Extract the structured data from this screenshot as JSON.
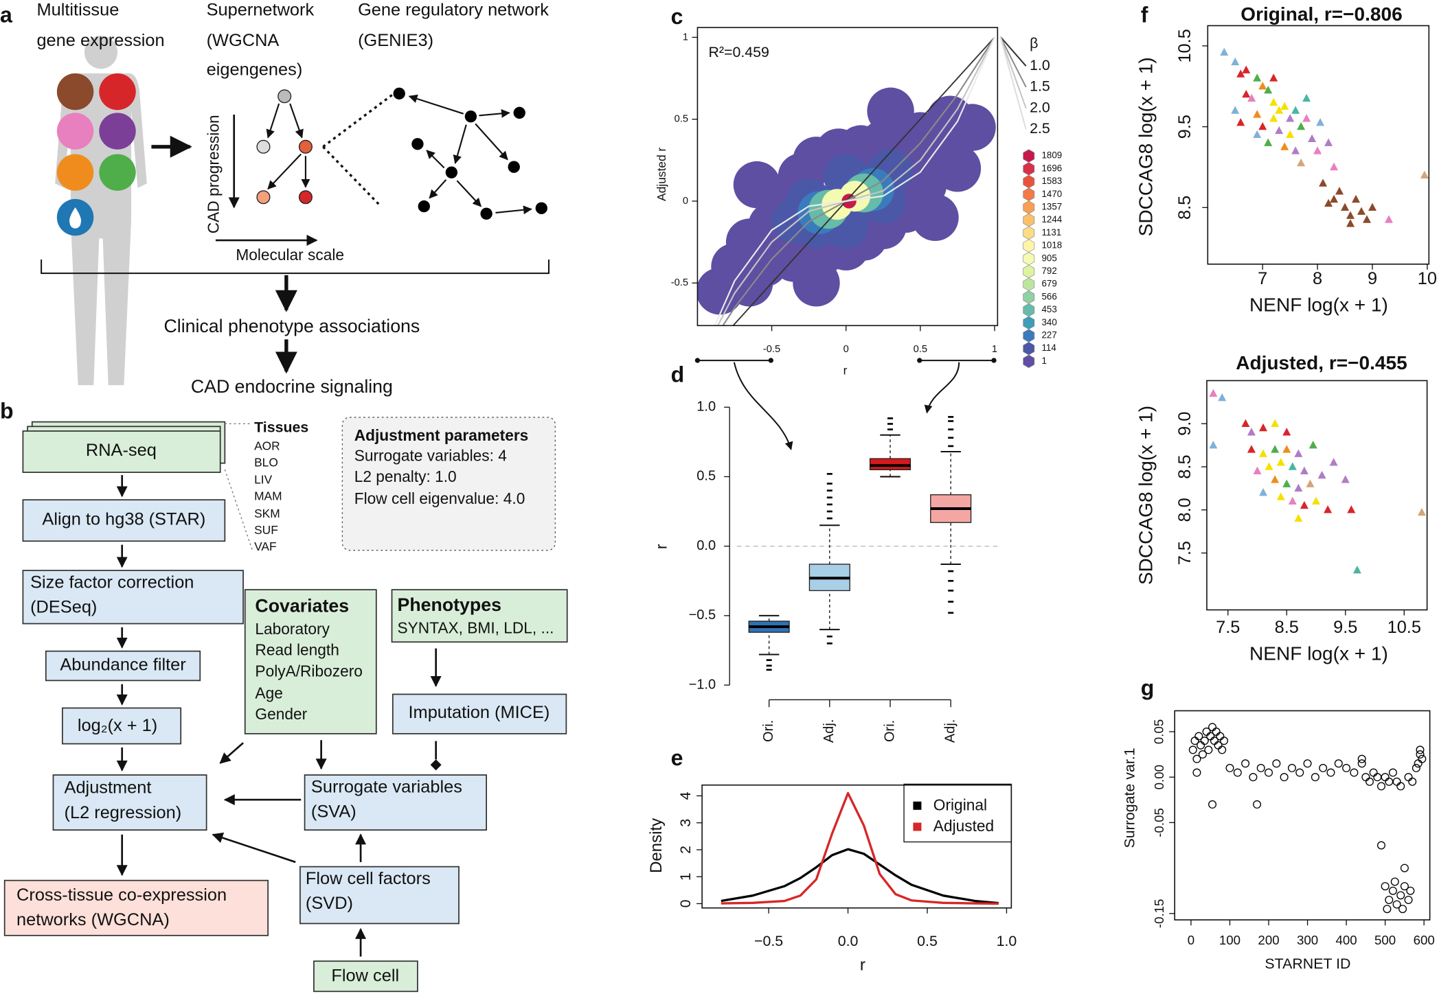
{
  "panel_a": {
    "label": "a",
    "expression_title": [
      "Multitissue",
      "gene expression"
    ],
    "supernetwork_title": [
      "Supernetwork",
      "(WGCNA",
      "eigengenes)"
    ],
    "grn_title": [
      "Gene regulatory network",
      "(GENIE3)"
    ],
    "progression_label": "CAD progression",
    "scale_label": "Molecular scale",
    "associations": "Clinical phenotype associations",
    "signaling": "CAD endocrine signaling"
  },
  "panel_b": {
    "label": "b",
    "rnaseq": "RNA-seq",
    "tissues_title": "Tissues",
    "tissues": [
      "AOR",
      "BLO",
      "LIV",
      "MAM",
      "SKM",
      "SUF",
      "VAF"
    ],
    "params_title": "Adjustment parameters",
    "params": [
      "Surrogate variables: 4",
      "L2 penalty: 1.0",
      "Flow cell eigenvalue: 4.0"
    ],
    "align": "Align to hg38 (STAR)",
    "size_factor": [
      "Size factor correction",
      "(DESeq)"
    ],
    "abundance": "Abundance filter",
    "log": "log₂(x + 1)",
    "adjustment": [
      "Adjustment",
      "(L2 regression)"
    ],
    "networks": [
      "Cross-tissue co-expression",
      "networks (WGCNA)"
    ],
    "covariates_title": "Covariates",
    "covariates": [
      "Laboratory",
      "Read length",
      "PolyA/Ribozero",
      "Age",
      "Gender"
    ],
    "phenotypes_title": "Phenotypes",
    "phenotypes": "SYNTAX, BMI, LDL, ...",
    "imputation": "Imputation (MICE)",
    "sva": [
      "Surrogate variables",
      "(SVA)"
    ],
    "svd": [
      "Flow cell factors",
      "(SVD)"
    ],
    "flowcell": "Flow cell"
  },
  "chart_data": [
    {
      "type": "hexbin",
      "label": "c",
      "annotation": "R²=0.459",
      "xlabel": "r",
      "ylabel": "Adjusted r",
      "xlim": [
        -1,
        1.02
      ],
      "ylim": [
        -0.76,
        1.06
      ],
      "xticks": [
        -0.5,
        0,
        0.5,
        1
      ],
      "yticks": [
        -0.5,
        0,
        0.5,
        1
      ],
      "bins": {
        "x": [
          -0.85,
          -0.75,
          -0.65,
          -0.65,
          -0.55,
          -0.5,
          -0.45,
          -0.4,
          -0.35,
          -0.3,
          -0.25,
          -0.2,
          -0.15,
          -0.05,
          0.0,
          0.1,
          0.12,
          0.25,
          0.25,
          0.38,
          0.4,
          0.5,
          0.52,
          0.62,
          0.7,
          0.75,
          0.85,
          -0.6,
          0.6,
          0.3,
          -0.2,
          -0.35,
          -0.25,
          -0.2,
          0.2,
          0.3,
          0.25,
          0.0,
          0.0,
          -0.18,
          0.18,
          -0.12,
          0.12,
          -0.06,
          0.06,
          0.02
        ],
        "y": [
          -0.55,
          -0.4,
          -0.5,
          -0.25,
          -0.38,
          -0.15,
          -0.3,
          0.0,
          -0.35,
          0.15,
          -0.28,
          0.25,
          -0.3,
          0.3,
          -0.28,
          0.32,
          -0.22,
          0.35,
          -0.15,
          0.35,
          -0.05,
          0.4,
          0.1,
          0.3,
          0.5,
          0.2,
          0.45,
          0.1,
          -0.1,
          0.55,
          -0.5,
          -0.12,
          0.0,
          -0.15,
          0.1,
          0.18,
          0.0,
          0.15,
          -0.15,
          -0.07,
          0.07,
          -0.05,
          0.05,
          -0.02,
          0.03,
          0.0
        ],
        "counts": [
          1,
          1,
          1,
          1,
          1,
          1,
          1,
          1,
          1,
          1,
          1,
          1,
          1,
          1,
          1,
          1,
          1,
          1,
          1,
          1,
          1,
          1,
          1,
          1,
          1,
          1,
          1,
          1,
          1,
          1,
          1,
          114,
          114,
          114,
          114,
          114,
          114,
          114,
          114,
          227,
          227,
          453,
          453,
          905,
          905,
          1809
        ]
      },
      "colorbar": {
        "values": [
          1809,
          1696,
          1583,
          1470,
          1357,
          1244,
          1131,
          1018,
          905,
          792,
          679,
          566,
          453,
          340,
          227,
          114,
          1
        ],
        "colors": [
          "#c51b4a",
          "#d7304a",
          "#e8543b",
          "#f27a47",
          "#f7a054",
          "#fbc06a",
          "#fddc84",
          "#fff5a8",
          "#f4fab0",
          "#def3a0",
          "#bde59f",
          "#90d0a3",
          "#66bca8",
          "#3f9db8",
          "#3a7bbd",
          "#4b58a8",
          "#5e4fa2"
        ]
      },
      "curves_title": "β",
      "curves": [
        {
          "name": "1.0",
          "color": "#333333",
          "x": [
            -1,
            1
          ],
          "y": [
            -1,
            1
          ]
        },
        {
          "name": "1.5",
          "color": "#8a8a8a",
          "x": [
            -1,
            -0.75,
            -0.5,
            -0.25,
            0,
            0.25,
            0.5,
            0.75,
            1
          ],
          "y": [
            -1,
            -0.65,
            -0.354,
            -0.125,
            0,
            0.125,
            0.354,
            0.65,
            1
          ]
        },
        {
          "name": "2.0",
          "color": "#c4c4c4",
          "x": [
            -1,
            -0.75,
            -0.5,
            -0.25,
            0,
            0.25,
            0.5,
            0.75,
            1
          ],
          "y": [
            -1,
            -0.5625,
            -0.25,
            -0.0625,
            0,
            0.0625,
            0.25,
            0.5625,
            1
          ]
        },
        {
          "name": "2.5",
          "color": "#ebebeb",
          "x": [
            -1,
            -0.75,
            -0.5,
            -0.25,
            0,
            0.25,
            0.5,
            0.75,
            1
          ],
          "y": [
            -1,
            -0.487,
            -0.177,
            -0.031,
            0,
            0.031,
            0.177,
            0.487,
            1
          ]
        }
      ]
    },
    {
      "type": "box",
      "label": "d",
      "ylabel": "r",
      "categories": [
        "Ori.",
        "Adj.",
        "Ori.",
        "Adj."
      ],
      "ylim": [
        -1,
        1
      ],
      "yticks": [
        {
          "value": 1,
          "label": "1.0"
        },
        {
          "value": 0.5,
          "label": "0.5"
        },
        {
          "value": 0,
          "label": "0.0"
        },
        {
          "value": -0.5,
          "label": "−0.5"
        },
        {
          "value": -1,
          "label": "−1.0"
        }
      ],
      "hline": 0,
      "boxes": [
        {
          "color": "#2f72b3",
          "whisker_low": -0.78,
          "q1": -0.62,
          "median": -0.58,
          "q3": -0.54,
          "whisker_high": -0.5,
          "outliers": [
            -0.82,
            -0.86,
            -0.89
          ]
        },
        {
          "color": "#a8cfe6",
          "whisker_low": -0.6,
          "q1": -0.32,
          "median": -0.23,
          "q3": -0.13,
          "whisker_high": 0.15,
          "outliers": [
            0.2,
            0.25,
            0.3,
            0.35,
            0.4,
            0.45,
            0.52,
            -0.65,
            -0.7
          ]
        },
        {
          "color": "#d7191c",
          "whisker_low": 0.5,
          "q1": 0.55,
          "median": 0.58,
          "q3": 0.63,
          "whisker_high": 0.8,
          "outliers": [
            0.84,
            0.88,
            0.92
          ]
        },
        {
          "color": "#f4a6a3",
          "whisker_low": -0.13,
          "q1": 0.17,
          "median": 0.27,
          "q3": 0.37,
          "whisker_high": 0.68,
          "outliers": [
            0.72,
            0.78,
            0.84,
            0.9,
            0.93,
            -0.18,
            -0.25,
            -0.32,
            -0.4,
            -0.48
          ]
        }
      ]
    },
    {
      "type": "line",
      "label": "e",
      "xlabel": "r",
      "ylabel": "Density",
      "legend": "top-right",
      "x": [
        -0.8,
        -0.6,
        -0.4,
        -0.3,
        -0.2,
        -0.1,
        0,
        0.1,
        0.2,
        0.3,
        0.4,
        0.6,
        0.8,
        0.95
      ],
      "xlim": [
        -0.92,
        1.03
      ],
      "ylim": [
        -0.16,
        4.4
      ],
      "xticks": [
        {
          "value": -0.5,
          "label": "−0.5"
        },
        {
          "value": 0,
          "label": "0.0"
        },
        {
          "value": 0.5,
          "label": "0.5"
        },
        {
          "value": 1,
          "label": "1.0"
        }
      ],
      "yticks": [
        0,
        1,
        2,
        3,
        4
      ],
      "series": [
        {
          "name": "Original",
          "color": "#000000",
          "values": [
            0.1,
            0.3,
            0.65,
            0.95,
            1.35,
            1.8,
            2.02,
            1.85,
            1.45,
            1.05,
            0.7,
            0.3,
            0.1,
            0.02
          ]
        },
        {
          "name": "Adjusted",
          "color": "#d62728",
          "values": [
            0.01,
            0.03,
            0.1,
            0.3,
            0.9,
            2.6,
            4.1,
            2.9,
            1.1,
            0.35,
            0.12,
            0.03,
            0.01,
            0.0
          ]
        }
      ]
    },
    {
      "type": "scatter",
      "marker": "triangle",
      "label": "f",
      "title": "Original, r=−0.806",
      "xlabel": "NENF log(x + 1)",
      "ylabel": "SDCCAG8 log(x + 1)",
      "xlim": [
        6.0,
        10.03
      ],
      "ylim": [
        7.8,
        10.75
      ],
      "xticks": [
        7,
        8,
        9,
        10
      ],
      "yticks": [
        8.5,
        9.5,
        10.5
      ],
      "x": [
        6.3,
        6.5,
        6.6,
        6.7,
        6.9,
        6.7,
        6.8,
        7.0,
        7.1,
        7.2,
        7.3,
        7.4,
        7.2,
        7.5,
        7.6,
        7.0,
        6.9,
        6.6,
        6.5,
        7.3,
        7.5,
        7.7,
        7.8,
        7.9,
        7.4,
        7.6,
        8.0,
        8.2,
        7.1,
        6.9,
        7.7,
        8.3,
        8.1,
        8.3,
        8.5,
        8.6,
        8.8,
        8.7,
        8.4,
        8.9,
        9.0,
        8.6,
        8.2,
        9.3,
        9.95,
        7.2,
        7.8,
        8.05
      ],
      "y": [
        10.42,
        10.3,
        10.15,
        10.2,
        10.1,
        9.9,
        9.85,
        10.0,
        9.95,
        9.8,
        9.7,
        9.75,
        9.6,
        9.6,
        9.7,
        9.5,
        9.65,
        9.55,
        9.7,
        9.45,
        9.4,
        9.5,
        9.6,
        9.35,
        9.25,
        9.2,
        9.2,
        9.3,
        9.3,
        9.4,
        9.05,
        9.0,
        8.8,
        8.6,
        8.5,
        8.4,
        8.45,
        8.6,
        8.7,
        8.35,
        8.5,
        8.3,
        8.55,
        8.35,
        8.9,
        10.1,
        9.85,
        9.55
      ],
      "colors": [
        "#7fb1d9",
        "#7fb1d9",
        "#d7262a",
        "#d7262a",
        "#4fae4a",
        "#d7262a",
        "#e87fbf",
        "#f08c1e",
        "#4fae4a",
        "#f5e000",
        "#f5e000",
        "#f5e000",
        "#f5e000",
        "#b07cc6",
        "#49b5a5",
        "#d7262a",
        "#f08c1e",
        "#d7262a",
        "#7fb1d9",
        "#b07cc6",
        "#f5e000",
        "#4fae4a",
        "#e87fbf",
        "#b07cc6",
        "#f08c1e",
        "#b07cc6",
        "#e87fbf",
        "#b07cc6",
        "#4fae4a",
        "#7fb1d9",
        "#d2a679",
        "#e87fbf",
        "#8b4a2b",
        "#8b4a2b",
        "#8b4a2b",
        "#8b4a2b",
        "#8b4a2b",
        "#8b4a2b",
        "#8b4a2b",
        "#8b4a2b",
        "#8b4a2b",
        "#8b4a2b",
        "#8b4a2b",
        "#e87fbf",
        "#d2a679",
        "#d7262a",
        "#49b5a5",
        "#7fb1d9"
      ]
    },
    {
      "type": "scatter",
      "marker": "triangle",
      "title": "Adjusted, r=−0.455",
      "xlabel": "NENF log(x + 1)",
      "ylabel": "SDCCAG8 log(x + 1)",
      "xlim": [
        7.14,
        10.89
      ],
      "ylim": [
        6.84,
        9.5
      ],
      "xticks": [
        7.5,
        8.5,
        9.5,
        10.5
      ],
      "yticks": [
        7.5,
        {
          "value": 8,
          "label": "8.0"
        },
        8.5,
        {
          "value": 9,
          "label": "9.0"
        }
      ],
      "x": [
        7.25,
        7.4,
        7.25,
        7.8,
        7.9,
        8.1,
        8.3,
        8.5,
        7.9,
        8.1,
        8.3,
        8.5,
        8.7,
        8.2,
        8.4,
        8.6,
        8.8,
        8.0,
        8.3,
        8.5,
        8.7,
        8.9,
        9.1,
        8.4,
        8.6,
        8.8,
        9.0,
        9.2,
        9.5,
        9.6,
        8.1,
        8.7,
        9.7,
        10.8,
        9.3,
        8.95
      ],
      "y": [
        9.35,
        9.3,
        8.75,
        9.0,
        8.9,
        8.95,
        9.0,
        8.9,
        8.7,
        8.65,
        8.7,
        8.7,
        8.65,
        8.5,
        8.55,
        8.5,
        8.45,
        8.45,
        8.35,
        8.3,
        8.25,
        8.3,
        8.4,
        8.15,
        8.1,
        8.05,
        8.1,
        8.0,
        8.35,
        8.0,
        8.2,
        7.9,
        7.3,
        7.97,
        8.55,
        8.75
      ],
      "colors": [
        "#e87fbf",
        "#7fb1d9",
        "#7fb1d9",
        "#d7262a",
        "#b07cc6",
        "#d7262a",
        "#f5e000",
        "#d7262a",
        "#d7262a",
        "#f5e000",
        "#4fae4a",
        "#f08c1e",
        "#b07cc6",
        "#f5e000",
        "#f5e000",
        "#49b5a5",
        "#b07cc6",
        "#e87fbf",
        "#f08c1e",
        "#4fae4a",
        "#b07cc6",
        "#d2a679",
        "#b07cc6",
        "#f5e000",
        "#e87fbf",
        "#d7262a",
        "#f5e000",
        "#d7262a",
        "#b07cc6",
        "#d7262a",
        "#7fb1d9",
        "#f5e000",
        "#49b5a5",
        "#d2a679",
        "#b07cc6",
        "#4fae4a"
      ]
    },
    {
      "type": "scatter",
      "marker": "circle",
      "label": "g",
      "color": "#000000",
      "xlabel": "STARNET ID",
      "ylabel": "Surrogate var.1",
      "xlim": [
        -42,
        615
      ],
      "ylim": [
        -0.157,
        0.073
      ],
      "xticks": [
        0,
        100,
        200,
        300,
        400,
        500,
        600
      ],
      "yticks": [
        0.05,
        {
          "value": 0,
          "label": "0.00"
        },
        -0.05,
        -0.15
      ],
      "x": [
        5,
        10,
        15,
        20,
        25,
        30,
        35,
        40,
        45,
        50,
        55,
        60,
        65,
        70,
        75,
        80,
        85,
        15,
        55,
        100,
        120,
        140,
        160,
        180,
        200,
        220,
        240,
        260,
        280,
        300,
        320,
        340,
        360,
        380,
        400,
        420,
        440,
        170,
        450,
        460,
        470,
        480,
        490,
        500,
        510,
        520,
        530,
        540,
        560,
        570,
        440,
        490,
        500,
        510,
        520,
        530,
        540,
        550,
        560,
        505,
        525,
        545,
        565,
        550,
        585,
        590,
        595,
        580,
        590
      ],
      "y": [
        0.03,
        0.04,
        0.02,
        0.045,
        0.035,
        0.025,
        0.04,
        0.05,
        0.03,
        0.045,
        0.055,
        0.04,
        0.05,
        0.035,
        0.045,
        0.03,
        0.04,
        0.005,
        -0.03,
        0.01,
        0.005,
        0.015,
        0.0,
        0.01,
        0.005,
        0.015,
        0.0,
        0.01,
        0.005,
        0.015,
        0.0,
        0.01,
        0.005,
        0.015,
        0.01,
        0.005,
        0.015,
        -0.03,
        0.0,
        -0.005,
        0.005,
        0.0,
        -0.01,
        0.0,
        -0.005,
        0.005,
        -0.005,
        -0.01,
        0.0,
        -0.005,
        0.02,
        -0.075,
        -0.12,
        -0.135,
        -0.125,
        -0.14,
        -0.13,
        -0.12,
        -0.135,
        -0.145,
        -0.115,
        -0.145,
        -0.125,
        -0.1,
        0.015,
        0.025,
        0.02,
        0.01,
        0.03
      ]
    }
  ]
}
